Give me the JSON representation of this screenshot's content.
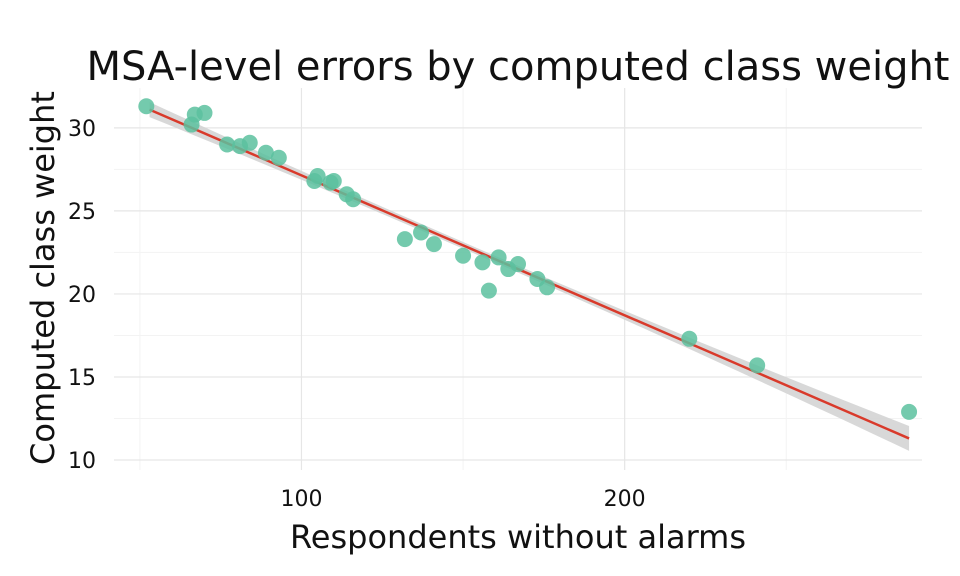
{
  "chart_data": {
    "type": "scatter",
    "title": "MSA-level errors by computed class weight",
    "xlabel": "Respondents without alarms",
    "ylabel": "Computed class weight",
    "xlim": [
      42,
      292
    ],
    "ylim": [
      9.4,
      32.4
    ],
    "x_ticks": [
      100,
      200
    ],
    "x_tick_labels": [
      "100",
      "200"
    ],
    "y_ticks": [
      10,
      15,
      20,
      25,
      30
    ],
    "y_tick_labels": [
      "10",
      "15",
      "20",
      "25",
      "30"
    ],
    "grid": true,
    "legend": "none",
    "points": [
      {
        "x": 52,
        "y": 31.3
      },
      {
        "x": 66,
        "y": 30.2
      },
      {
        "x": 67,
        "y": 30.8
      },
      {
        "x": 70,
        "y": 30.9
      },
      {
        "x": 77,
        "y": 29.0
      },
      {
        "x": 81,
        "y": 28.9
      },
      {
        "x": 84,
        "y": 29.1
      },
      {
        "x": 89,
        "y": 28.5
      },
      {
        "x": 93,
        "y": 28.2
      },
      {
        "x": 104,
        "y": 26.8
      },
      {
        "x": 105,
        "y": 27.1
      },
      {
        "x": 109,
        "y": 26.7
      },
      {
        "x": 110,
        "y": 26.8
      },
      {
        "x": 114,
        "y": 26.0
      },
      {
        "x": 116,
        "y": 25.7
      },
      {
        "x": 132,
        "y": 23.3
      },
      {
        "x": 137,
        "y": 23.7
      },
      {
        "x": 141,
        "y": 23.0
      },
      {
        "x": 150,
        "y": 22.3
      },
      {
        "x": 156,
        "y": 21.9
      },
      {
        "x": 158,
        "y": 20.2
      },
      {
        "x": 161,
        "y": 22.2
      },
      {
        "x": 164,
        "y": 21.5
      },
      {
        "x": 167,
        "y": 21.8
      },
      {
        "x": 173,
        "y": 20.9
      },
      {
        "x": 176,
        "y": 20.4
      },
      {
        "x": 220,
        "y": 17.3
      },
      {
        "x": 241,
        "y": 15.7
      },
      {
        "x": 288,
        "y": 12.9
      }
    ],
    "trend_line": {
      "x": [
        53,
        288
      ],
      "y": [
        31.1,
        11.3
      ],
      "ci_halfwidth_ends": [
        0.45,
        0.75
      ],
      "ci_halfwidth_mid": 0.2,
      "x_mid": 150
    },
    "colors": {
      "points": "#5cc19f",
      "trend_line": "#d93a2b",
      "confidence_band": "#d4d4d4",
      "grid_major": "#e6e6e6",
      "grid_minor": "#f3f3f3"
    }
  }
}
